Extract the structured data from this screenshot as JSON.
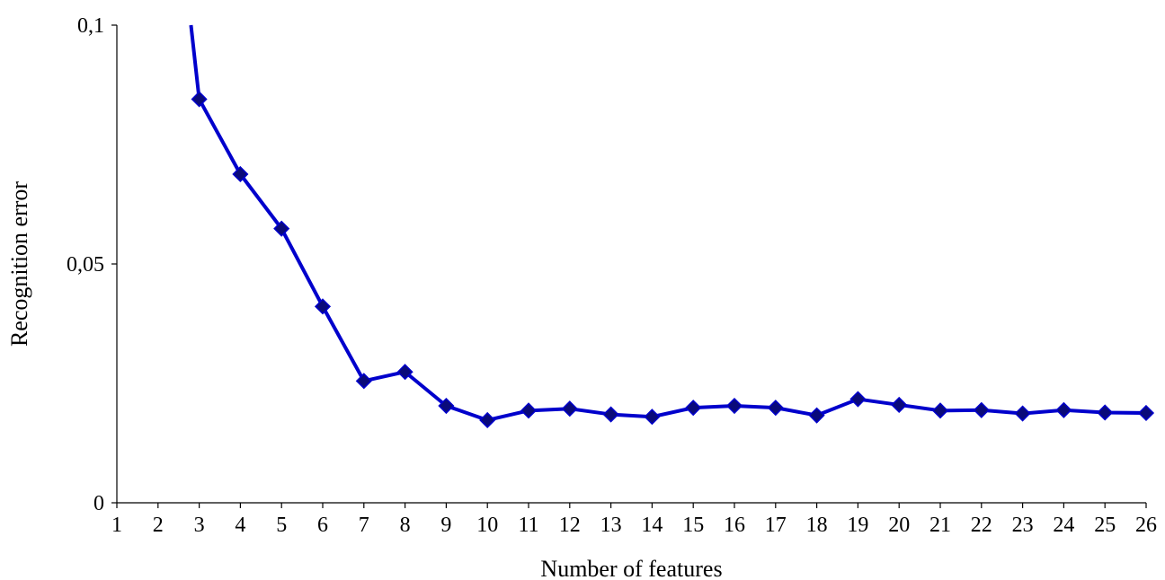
{
  "chart_data": {
    "type": "line",
    "xlabel": "Number of features",
    "ylabel": "Recognition error",
    "xlim": [
      1,
      26
    ],
    "ylim": [
      0,
      0.1
    ],
    "x_ticks": [
      "1",
      "2",
      "3",
      "4",
      "5",
      "6",
      "7",
      "8",
      "9",
      "10",
      "11",
      "12",
      "13",
      "14",
      "15",
      "16",
      "17",
      "18",
      "19",
      "20",
      "21",
      "22",
      "23",
      "24",
      "25",
      "26"
    ],
    "y_ticks": [
      {
        "value": 0,
        "label": "0"
      },
      {
        "value": 0.05,
        "label": "0,05"
      },
      {
        "value": 0.1,
        "label": "0,1"
      }
    ],
    "grid": false,
    "legend": "none",
    "series": [
      {
        "color": "#0000cc",
        "marker": "diamond",
        "x": [
          3,
          4,
          5,
          6,
          7,
          8,
          9,
          10,
          11,
          12,
          13,
          14,
          15,
          16,
          17,
          18,
          19,
          20,
          21,
          22,
          23,
          24,
          25,
          26
        ],
        "values": [
          0.0845,
          0.0688,
          0.0574,
          0.0411,
          0.0255,
          0.0274,
          0.0203,
          0.0173,
          0.0193,
          0.0197,
          0.0185,
          0.018,
          0.0199,
          0.0203,
          0.0199,
          0.0183,
          0.0217,
          0.0205,
          0.0193,
          0.0194,
          0.0187,
          0.0194,
          0.0189,
          0.0188
        ],
        "lead_in": {
          "x": [
            2.8
          ],
          "values": [
            0.1
          ]
        }
      }
    ]
  }
}
